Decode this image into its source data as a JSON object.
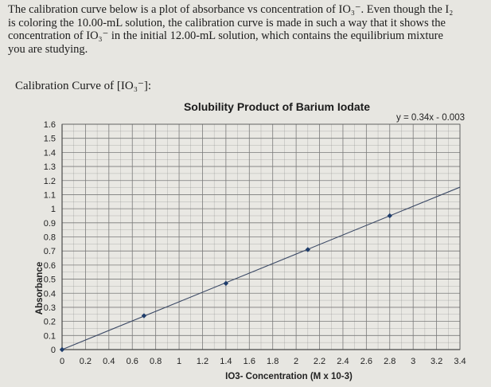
{
  "problem": {
    "line1": "The calibration curve below is a plot of absorbance vs concentration of IO₃⁻. Even though the I₂",
    "line2": "is coloring the 10.00-mL solution, the calibration curve is made in such a way that it shows the",
    "line3": "concentration of IO₃⁻ in the initial 12.00-mL solution, which contains the equilibrium mixture",
    "line4": "you are studying."
  },
  "caption": "Calibration Curve of [IO₃⁻]:",
  "chart_data": {
    "type": "scatter",
    "title": "Solubility Product of Barium Iodate",
    "xlabel": "IO3- Concentration (M x 10-3)",
    "ylabel": "Absorbance",
    "xlim": [
      0,
      3.4
    ],
    "ylim": [
      0,
      1.6
    ],
    "x_ticks": [
      "0",
      "0.2",
      "0.4",
      "0.6",
      "0.8",
      "1",
      "1.2",
      "1.4",
      "1.6",
      "1.8",
      "2",
      "2.2",
      "2.4",
      "2.6",
      "2.8",
      "3",
      "3.2",
      "3.4"
    ],
    "y_ticks": [
      "0",
      "0.1",
      "0.2",
      "0.3",
      "0.4",
      "0.5",
      "0.6",
      "0.7",
      "0.8",
      "0.9",
      "1",
      "1.1",
      "1.2",
      "1.3",
      "1.4",
      "1.5",
      "1.6"
    ],
    "points": [
      {
        "x": 0,
        "y": 0
      },
      {
        "x": 0.7,
        "y": 0.24
      },
      {
        "x": 1.4,
        "y": 0.47
      },
      {
        "x": 2.1,
        "y": 0.71
      },
      {
        "x": 2.8,
        "y": 0.95
      }
    ],
    "trendline": {
      "slope": 0.34,
      "intercept": -0.003,
      "equation": "y = 0.34x - 0.003"
    },
    "grid": true,
    "minor_gridlines": true,
    "colors": {
      "points": "#1f3d6b",
      "line": "#3c4a66",
      "grid": "#7a7a7a",
      "background": "#e9e8e3"
    }
  }
}
